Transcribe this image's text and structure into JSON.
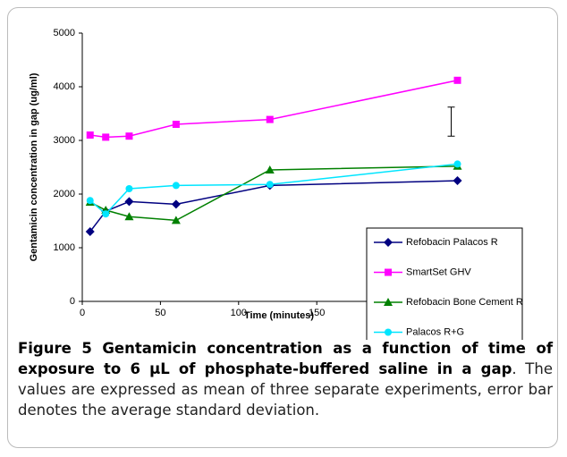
{
  "chart_data": {
    "type": "line",
    "ylabel": "Gentamicin concentration in gap (ug/ml)",
    "xlabel": "Time (minutes)",
    "x": [
      5,
      15,
      30,
      60,
      120,
      240
    ],
    "series": [
      {
        "name": "Refobacin Palacos R",
        "color": "#000080",
        "marker": "diamond",
        "values": [
          1300,
          1680,
          1860,
          1810,
          2160,
          2250
        ]
      },
      {
        "name": "SmartSet GHV",
        "color": "#ff00ff",
        "marker": "square",
        "values": [
          3100,
          3060,
          3080,
          3300,
          3390,
          4120
        ]
      },
      {
        "name": "Refobacin Bone Cement R",
        "color": "#008000",
        "marker": "triangle",
        "values": [
          1850,
          1700,
          1580,
          1510,
          2450,
          2520
        ]
      },
      {
        "name": "Palacos R+G",
        "color": "#00e5ff",
        "marker": "circle",
        "values": [
          1880,
          1630,
          2100,
          2160,
          2180,
          2560
        ]
      }
    ],
    "error_bar": {
      "x": 240,
      "y": 3350,
      "error": 270
    },
    "xlim": [
      0,
      250
    ],
    "xticks": [
      0,
      50,
      100,
      150,
      200,
      250
    ],
    "ylim": [
      0,
      5000
    ],
    "yticks": [
      0,
      1000,
      2000,
      3000,
      4000,
      5000
    ],
    "legend": "right"
  },
  "caption": {
    "title": "Figure 5 Gentamicin concentration as a function of time of exposure to 6 µL of phosphate-buffered saline in a gap",
    "text": ". The values are expressed as mean of three separate experiments, error bar denotes the average standard deviation."
  }
}
